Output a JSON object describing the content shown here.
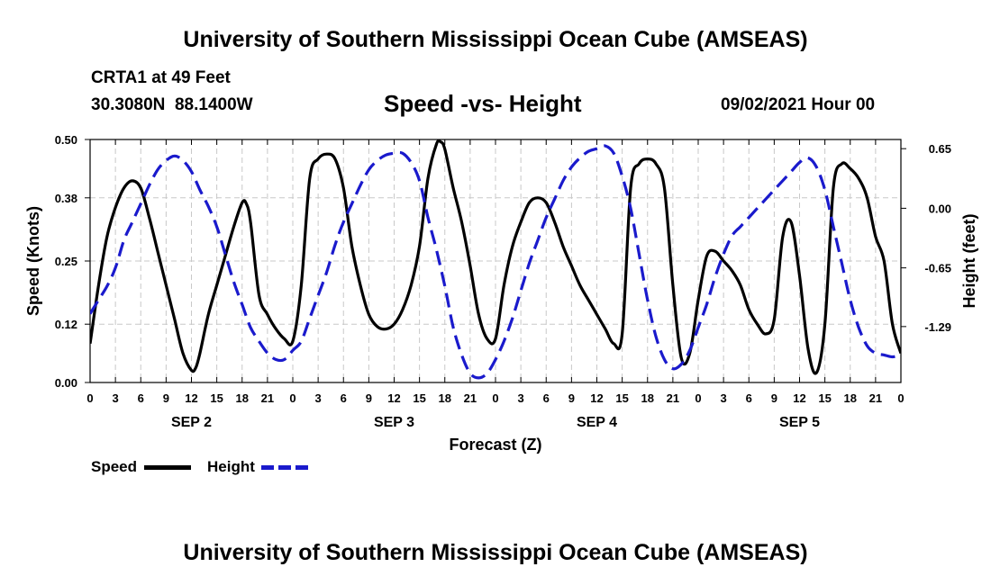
{
  "header": {
    "title": "University of Southern Mississippi Ocean Cube (AMSEAS)",
    "station": "CRTA1 at 49 Feet",
    "coords": "30.3080N  88.1400W",
    "chart_title": "Speed -vs- Height",
    "datetime": "09/02/2021 Hour 00"
  },
  "footer": {
    "title": "University of Southern Mississippi Ocean Cube (AMSEAS)"
  },
  "legend": {
    "speed_label": "Speed",
    "height_label": "Height",
    "speed_color": "#000000",
    "height_color": "#1a1acc"
  },
  "chart_data": {
    "type": "line",
    "title": "Speed -vs- Height",
    "xlabel": "Forecast (Z)",
    "ylabel_left": "Speed (Knots)",
    "ylabel_right": "Height (feet)",
    "x_range": [
      0,
      96
    ],
    "x_ticks": [
      0,
      3,
      6,
      9,
      12,
      15,
      18,
      21,
      24,
      27,
      30,
      33,
      36,
      39,
      42,
      45,
      48,
      51,
      54,
      57,
      60,
      63,
      66,
      69,
      72,
      75,
      78,
      81,
      84,
      87,
      90,
      93,
      96
    ],
    "x_tick_labels": [
      "0",
      "3",
      "6",
      "9",
      "12",
      "15",
      "18",
      "21",
      "0",
      "3",
      "6",
      "9",
      "12",
      "15",
      "18",
      "21",
      "0",
      "3",
      "6",
      "9",
      "12",
      "15",
      "18",
      "21",
      "0",
      "3",
      "6",
      "9",
      "12",
      "15",
      "18",
      "21",
      "0"
    ],
    "day_labels": [
      {
        "label": "SEP 2",
        "x": 12
      },
      {
        "label": "SEP 3",
        "x": 36
      },
      {
        "label": "SEP 4",
        "x": 60
      },
      {
        "label": "SEP 5",
        "x": 84
      }
    ],
    "y_left": {
      "min": 0.0,
      "max": 0.5,
      "ticks": [
        0.0,
        0.12,
        0.25,
        0.38,
        0.5
      ],
      "tick_labels": [
        "0.00",
        "0.12",
        "0.25",
        "0.38",
        "0.50"
      ]
    },
    "y_right": {
      "min": -1.9,
      "max": 0.75,
      "ticks": [
        -1.29,
        -0.65,
        0.0,
        0.65
      ],
      "tick_labels": [
        "-1.29",
        "-0.65",
        "0.00",
        "0.65"
      ]
    },
    "grid": true,
    "series": [
      {
        "name": "Speed",
        "axis": "left",
        "style": "solid",
        "points": [
          [
            0,
            0.08
          ],
          [
            1,
            0.2
          ],
          [
            2,
            0.3
          ],
          [
            3,
            0.36
          ],
          [
            4,
            0.4
          ],
          [
            5,
            0.415
          ],
          [
            6,
            0.4
          ],
          [
            7,
            0.34
          ],
          [
            8,
            0.27
          ],
          [
            9,
            0.2
          ],
          [
            10,
            0.13
          ],
          [
            11,
            0.06
          ],
          [
            12,
            0.025
          ],
          [
            12.5,
            0.03
          ],
          [
            13,
            0.06
          ],
          [
            14,
            0.14
          ],
          [
            15,
            0.2
          ],
          [
            16,
            0.26
          ],
          [
            17,
            0.32
          ],
          [
            18,
            0.37
          ],
          [
            18.5,
            0.368
          ],
          [
            19,
            0.33
          ],
          [
            20,
            0.18
          ],
          [
            21,
            0.14
          ],
          [
            22,
            0.11
          ],
          [
            23,
            0.09
          ],
          [
            24,
            0.085
          ],
          [
            25,
            0.2
          ],
          [
            26,
            0.42
          ],
          [
            27,
            0.46
          ],
          [
            28,
            0.47
          ],
          [
            29,
            0.46
          ],
          [
            30,
            0.4
          ],
          [
            31,
            0.28
          ],
          [
            32,
            0.2
          ],
          [
            33,
            0.14
          ],
          [
            34,
            0.115
          ],
          [
            35,
            0.11
          ],
          [
            36,
            0.12
          ],
          [
            37,
            0.15
          ],
          [
            38,
            0.2
          ],
          [
            39,
            0.28
          ],
          [
            40,
            0.42
          ],
          [
            41,
            0.49
          ],
          [
            41.5,
            0.495
          ],
          [
            42,
            0.48
          ],
          [
            43,
            0.4
          ],
          [
            44,
            0.33
          ],
          [
            45,
            0.24
          ],
          [
            46,
            0.14
          ],
          [
            47,
            0.09
          ],
          [
            48,
            0.09
          ],
          [
            49,
            0.2
          ],
          [
            50,
            0.28
          ],
          [
            51,
            0.33
          ],
          [
            52,
            0.37
          ],
          [
            53,
            0.38
          ],
          [
            54,
            0.37
          ],
          [
            55,
            0.33
          ],
          [
            56,
            0.28
          ],
          [
            57,
            0.24
          ],
          [
            58,
            0.2
          ],
          [
            59,
            0.17
          ],
          [
            60,
            0.14
          ],
          [
            61,
            0.11
          ],
          [
            62,
            0.08
          ],
          [
            63,
            0.1
          ],
          [
            64,
            0.4
          ],
          [
            65,
            0.45
          ],
          [
            66,
            0.46
          ],
          [
            67,
            0.45
          ],
          [
            68,
            0.4
          ],
          [
            69,
            0.2
          ],
          [
            70,
            0.05
          ],
          [
            71,
            0.06
          ],
          [
            72,
            0.17
          ],
          [
            73,
            0.26
          ],
          [
            74,
            0.27
          ],
          [
            75,
            0.25
          ],
          [
            76,
            0.23
          ],
          [
            77,
            0.2
          ],
          [
            78,
            0.15
          ],
          [
            79,
            0.12
          ],
          [
            80,
            0.1
          ],
          [
            81,
            0.13
          ],
          [
            82,
            0.3
          ],
          [
            83,
            0.33
          ],
          [
            84,
            0.22
          ],
          [
            85,
            0.07
          ],
          [
            86,
            0.02
          ],
          [
            87,
            0.12
          ],
          [
            88,
            0.4
          ],
          [
            89,
            0.45
          ],
          [
            90,
            0.44
          ],
          [
            91,
            0.42
          ],
          [
            92,
            0.38
          ],
          [
            93,
            0.3
          ],
          [
            94,
            0.25
          ],
          [
            95,
            0.12
          ],
          [
            96,
            0.06
          ]
        ]
      },
      {
        "name": "Height",
        "axis": "right",
        "style": "dashed",
        "points": [
          [
            0,
            -1.15
          ],
          [
            1,
            -1.0
          ],
          [
            2,
            -0.85
          ],
          [
            3,
            -0.65
          ],
          [
            4,
            -0.35
          ],
          [
            5,
            -0.15
          ],
          [
            6,
            0.05
          ],
          [
            7,
            0.25
          ],
          [
            8,
            0.42
          ],
          [
            9,
            0.52
          ],
          [
            10,
            0.57
          ],
          [
            11,
            0.52
          ],
          [
            12,
            0.4
          ],
          [
            13,
            0.2
          ],
          [
            14,
            0.02
          ],
          [
            15,
            -0.2
          ],
          [
            16,
            -0.5
          ],
          [
            17,
            -0.8
          ],
          [
            18,
            -1.05
          ],
          [
            19,
            -1.3
          ],
          [
            20,
            -1.45
          ],
          [
            21,
            -1.58
          ],
          [
            22,
            -1.65
          ],
          [
            23,
            -1.65
          ],
          [
            24,
            -1.55
          ],
          [
            25,
            -1.45
          ],
          [
            26,
            -1.2
          ],
          [
            27,
            -0.95
          ],
          [
            28,
            -0.7
          ],
          [
            29,
            -0.4
          ],
          [
            30,
            -0.15
          ],
          [
            31,
            0.05
          ],
          [
            32,
            0.25
          ],
          [
            33,
            0.42
          ],
          [
            34,
            0.52
          ],
          [
            35,
            0.58
          ],
          [
            36,
            0.6
          ],
          [
            37,
            0.6
          ],
          [
            38,
            0.5
          ],
          [
            39,
            0.3
          ],
          [
            40,
            -0.1
          ],
          [
            41,
            -0.45
          ],
          [
            42,
            -0.85
          ],
          [
            43,
            -1.3
          ],
          [
            44,
            -1.6
          ],
          [
            45,
            -1.8
          ],
          [
            46,
            -1.85
          ],
          [
            47,
            -1.8
          ],
          [
            48,
            -1.65
          ],
          [
            49,
            -1.45
          ],
          [
            50,
            -1.2
          ],
          [
            51,
            -0.9
          ],
          [
            52,
            -0.6
          ],
          [
            53,
            -0.35
          ],
          [
            54,
            -0.1
          ],
          [
            55,
            0.1
          ],
          [
            56,
            0.3
          ],
          [
            57,
            0.45
          ],
          [
            58,
            0.55
          ],
          [
            59,
            0.62
          ],
          [
            60,
            0.65
          ],
          [
            61,
            0.68
          ],
          [
            62,
            0.6
          ],
          [
            63,
            0.35
          ],
          [
            64,
            0.0
          ],
          [
            65,
            -0.5
          ],
          [
            66,
            -1.0
          ],
          [
            67,
            -1.4
          ],
          [
            68,
            -1.65
          ],
          [
            69,
            -1.75
          ],
          [
            70,
            -1.7
          ],
          [
            71,
            -1.55
          ],
          [
            72,
            -1.3
          ],
          [
            73,
            -1.05
          ],
          [
            74,
            -0.75
          ],
          [
            75,
            -0.5
          ],
          [
            76,
            -0.3
          ],
          [
            77,
            -0.2
          ],
          [
            78,
            -0.1
          ],
          [
            79,
            0.0
          ],
          [
            80,
            0.1
          ],
          [
            81,
            0.2
          ],
          [
            82,
            0.3
          ],
          [
            83,
            0.4
          ],
          [
            84,
            0.5
          ],
          [
            85,
            0.55
          ],
          [
            86,
            0.45
          ],
          [
            87,
            0.2
          ],
          [
            88,
            -0.2
          ],
          [
            89,
            -0.6
          ],
          [
            90,
            -1.0
          ],
          [
            91,
            -1.3
          ],
          [
            92,
            -1.5
          ],
          [
            93,
            -1.58
          ],
          [
            94,
            -1.6
          ],
          [
            95,
            -1.62
          ],
          [
            96,
            -1.6
          ]
        ]
      }
    ]
  }
}
